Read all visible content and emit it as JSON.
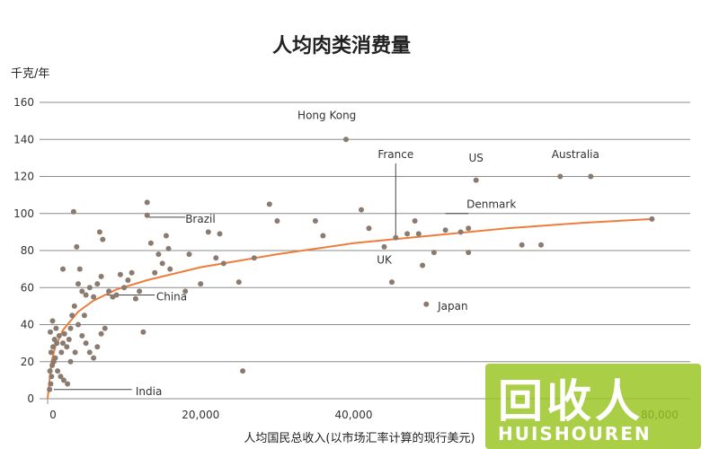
{
  "chart_data": {
    "type": "scatter",
    "title": "人均肉类消费量",
    "ylabel": "千克/年",
    "xlabel": "人均国民总收入(以市场汇率计算的现行美元)",
    "xlim": [
      0,
      84000
    ],
    "ylim": [
      0,
      160
    ],
    "x_ticks": [
      0,
      20000,
      40000,
      80000
    ],
    "x_tick_labels": [
      "0",
      "20,000",
      "40,000",
      "80,000"
    ],
    "y_ticks": [
      0,
      20,
      40,
      60,
      80,
      100,
      120,
      140,
      160
    ],
    "y_tick_labels": [
      "0",
      "20",
      "40",
      "60",
      "80",
      "100",
      "120",
      "140",
      "160"
    ],
    "grid": "horizontal",
    "colors": {
      "points": "#8a7a70",
      "trend": "#ee7d3b",
      "grid": "#8c8c8c"
    },
    "points": [
      {
        "x": 250,
        "y": 5
      },
      {
        "x": 400,
        "y": 8
      },
      {
        "x": 500,
        "y": 12
      },
      {
        "x": 300,
        "y": 15
      },
      {
        "x": 600,
        "y": 18
      },
      {
        "x": 800,
        "y": 20
      },
      {
        "x": 1000,
        "y": 22
      },
      {
        "x": 450,
        "y": 25
      },
      {
        "x": 700,
        "y": 28
      },
      {
        "x": 1200,
        "y": 30
      },
      {
        "x": 900,
        "y": 32
      },
      {
        "x": 1500,
        "y": 34
      },
      {
        "x": 350,
        "y": 36
      },
      {
        "x": 1100,
        "y": 38
      },
      {
        "x": 650,
        "y": 42
      },
      {
        "x": 1800,
        "y": 25
      },
      {
        "x": 2000,
        "y": 30
      },
      {
        "x": 2200,
        "y": 35
      },
      {
        "x": 2500,
        "y": 28
      },
      {
        "x": 2800,
        "y": 32
      },
      {
        "x": 3000,
        "y": 38
      },
      {
        "x": 3200,
        "y": 45
      },
      {
        "x": 3500,
        "y": 50
      },
      {
        "x": 1300,
        "y": 15
      },
      {
        "x": 1700,
        "y": 12
      },
      {
        "x": 2100,
        "y": 10
      },
      {
        "x": 2600,
        "y": 8
      },
      {
        "x": 2000,
        "y": 70
      },
      {
        "x": 3400,
        "y": 101
      },
      {
        "x": 3800,
        "y": 82
      },
      {
        "x": 4200,
        "y": 70
      },
      {
        "x": 4000,
        "y": 62
      },
      {
        "x": 4500,
        "y": 58
      },
      {
        "x": 5000,
        "y": 56
      },
      {
        "x": 5500,
        "y": 60
      },
      {
        "x": 6000,
        "y": 55
      },
      {
        "x": 6500,
        "y": 62
      },
      {
        "x": 7000,
        "y": 66
      },
      {
        "x": 6800,
        "y": 90
      },
      {
        "x": 7200,
        "y": 86
      },
      {
        "x": 8000,
        "y": 58
      },
      {
        "x": 8500,
        "y": 55
      },
      {
        "x": 9000,
        "y": 56
      },
      {
        "x": 9500,
        "y": 67
      },
      {
        "x": 10000,
        "y": 60
      },
      {
        "x": 10500,
        "y": 64
      },
      {
        "x": 11000,
        "y": 68
      },
      {
        "x": 11500,
        "y": 54
      },
      {
        "x": 12000,
        "y": 58
      },
      {
        "x": 4000,
        "y": 40
      },
      {
        "x": 4500,
        "y": 34
      },
      {
        "x": 5000,
        "y": 30
      },
      {
        "x": 5500,
        "y": 25
      },
      {
        "x": 6000,
        "y": 22
      },
      {
        "x": 6500,
        "y": 28
      },
      {
        "x": 7000,
        "y": 35
      },
      {
        "x": 7500,
        "y": 38
      },
      {
        "x": 3000,
        "y": 20
      },
      {
        "x": 3600,
        "y": 25
      },
      {
        "x": 4800,
        "y": 45
      },
      {
        "x": 12500,
        "y": 36
      },
      {
        "x": 13000,
        "y": 106
      },
      {
        "x": 13000,
        "y": 99
      },
      {
        "x": 13500,
        "y": 84
      },
      {
        "x": 14000,
        "y": 68
      },
      {
        "x": 14500,
        "y": 78
      },
      {
        "x": 15000,
        "y": 73
      },
      {
        "x": 15500,
        "y": 88
      },
      {
        "x": 15800,
        "y": 81
      },
      {
        "x": 16000,
        "y": 70
      },
      {
        "x": 18000,
        "y": 58
      },
      {
        "x": 18500,
        "y": 78
      },
      {
        "x": 20000,
        "y": 62
      },
      {
        "x": 21000,
        "y": 90
      },
      {
        "x": 22000,
        "y": 76
      },
      {
        "x": 22500,
        "y": 89
      },
      {
        "x": 23000,
        "y": 73
      },
      {
        "x": 25000,
        "y": 63
      },
      {
        "x": 25500,
        "y": 15
      },
      {
        "x": 27000,
        "y": 76
      },
      {
        "x": 29000,
        "y": 105
      },
      {
        "x": 30000,
        "y": 96
      },
      {
        "x": 35000,
        "y": 96
      },
      {
        "x": 36000,
        "y": 88
      },
      {
        "x": 39000,
        "y": 140
      },
      {
        "x": 41000,
        "y": 102
      },
      {
        "x": 42000,
        "y": 92
      },
      {
        "x": 44000,
        "y": 82
      },
      {
        "x": 45000,
        "y": 63
      },
      {
        "x": 45500,
        "y": 87
      },
      {
        "x": 47000,
        "y": 89
      },
      {
        "x": 48000,
        "y": 96
      },
      {
        "x": 48500,
        "y": 89
      },
      {
        "x": 49000,
        "y": 72
      },
      {
        "x": 49500,
        "y": 51
      },
      {
        "x": 50500,
        "y": 79
      },
      {
        "x": 52000,
        "y": 91
      },
      {
        "x": 54000,
        "y": 90
      },
      {
        "x": 55000,
        "y": 92
      },
      {
        "x": 56000,
        "y": 118
      },
      {
        "x": 55000,
        "y": 79
      },
      {
        "x": 62000,
        "y": 83
      },
      {
        "x": 64500,
        "y": 83
      },
      {
        "x": 67000,
        "y": 120
      },
      {
        "x": 71000,
        "y": 120
      },
      {
        "x": 79000,
        "y": 97
      }
    ],
    "trend": [
      {
        "x": 0,
        "y": 0
      },
      {
        "x": 500,
        "y": 20
      },
      {
        "x": 1000,
        "y": 28
      },
      {
        "x": 2000,
        "y": 37
      },
      {
        "x": 4000,
        "y": 47
      },
      {
        "x": 6000,
        "y": 53
      },
      {
        "x": 9000,
        "y": 59
      },
      {
        "x": 13000,
        "y": 64
      },
      {
        "x": 20000,
        "y": 71
      },
      {
        "x": 30000,
        "y": 78
      },
      {
        "x": 40000,
        "y": 84
      },
      {
        "x": 50000,
        "y": 88
      },
      {
        "x": 60000,
        "y": 92
      },
      {
        "x": 70000,
        "y": 95
      },
      {
        "x": 79000,
        "y": 97
      }
    ],
    "annotations": [
      {
        "label": "Hong Kong",
        "x": 39000,
        "y": 140,
        "lx": 36500,
        "ly": 151,
        "anchor": "middle"
      },
      {
        "label": "France",
        "x": 45500,
        "y": 87,
        "lx": 45500,
        "ly": 130,
        "anchor": "middle",
        "line": [
          45500,
          127,
          45500,
          88
        ]
      },
      {
        "label": "US",
        "x": 56000,
        "y": 118,
        "lx": 56000,
        "ly": 128,
        "anchor": "middle"
      },
      {
        "label": "Australia",
        "x": 69000,
        "y": 120,
        "lx": 69000,
        "ly": 130,
        "anchor": "middle"
      },
      {
        "label": "Denmark",
        "x": 52000,
        "y": 91,
        "lx": 58000,
        "ly": 103,
        "anchor": "middle",
        "line": [
          52000,
          100,
          55000,
          100
        ]
      },
      {
        "label": "UK",
        "x": 44000,
        "y": 82,
        "lx": 44000,
        "ly": 73,
        "anchor": "middle"
      },
      {
        "label": "Japan",
        "x": 49500,
        "y": 51,
        "lx": 51000,
        "ly": 48,
        "anchor": "start"
      },
      {
        "label": "Brazil",
        "x": 13000,
        "y": 99,
        "lx": 18000,
        "ly": 95,
        "anchor": "start",
        "line": [
          13200,
          98,
          18000,
          98
        ]
      },
      {
        "label": "China",
        "x": 7000,
        "y": 56,
        "lx": 14200,
        "ly": 53,
        "anchor": "start",
        "line": [
          7500,
          56,
          14000,
          56
        ]
      },
      {
        "label": "India",
        "x": 250,
        "y": 5,
        "lx": 11500,
        "ly": 2,
        "anchor": "start",
        "line": [
          800,
          5,
          11000,
          5
        ]
      }
    ]
  },
  "watermark": {
    "main": "回收人",
    "sub": "HUISHOUREN"
  }
}
